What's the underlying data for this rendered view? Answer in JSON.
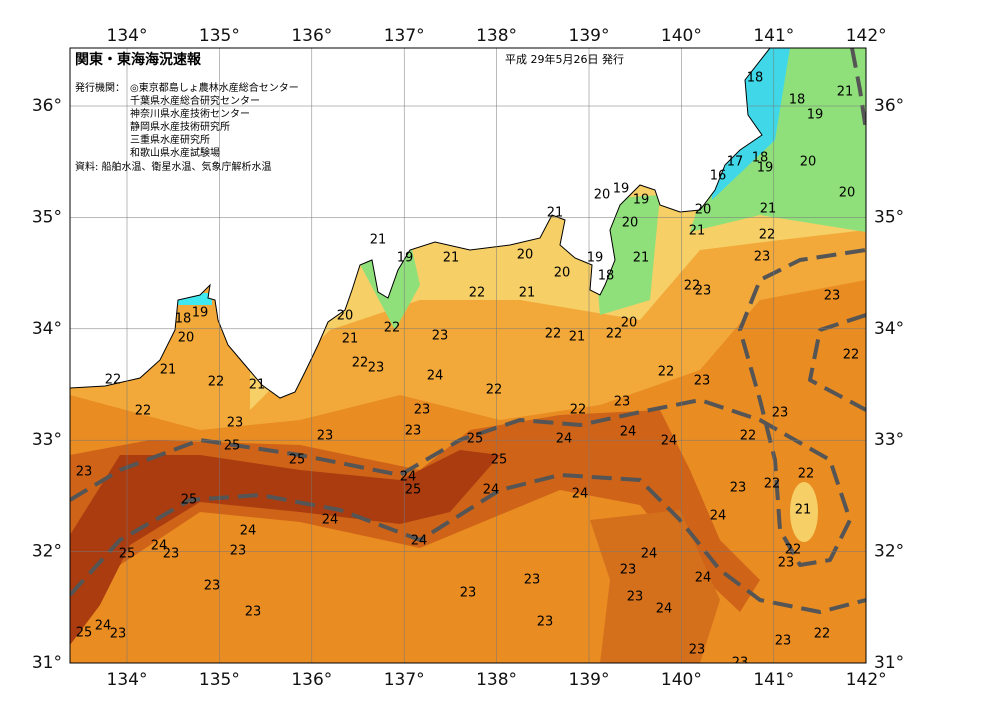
{
  "header": {
    "title": "関東・東海海況速報",
    "issue_date": "平成 29年5月26日 発行",
    "issuer_label": "発行機関：",
    "issuers": [
      "◎東京都島しょ農林水産総合センター",
      "千葉県水産総合研究センター",
      "神奈川県水産技術センター",
      "静岡県水産技術研究所",
      "三重県水産研究所",
      "和歌山県水産試験場"
    ],
    "source": "資料: 船舶水温、衛星水温、気象庁解析水温"
  },
  "map": {
    "lon_ticks": [
      {
        "value": 134,
        "label": "134°"
      },
      {
        "value": 135,
        "label": "135°"
      },
      {
        "value": 136,
        "label": "136°"
      },
      {
        "value": 137,
        "label": "137°"
      },
      {
        "value": 138,
        "label": "138°"
      },
      {
        "value": 139,
        "label": "139°"
      },
      {
        "value": 140,
        "label": "140°"
      },
      {
        "value": 141,
        "label": "141°"
      },
      {
        "value": 142,
        "label": "142°"
      }
    ],
    "lat_ticks": [
      {
        "value": 36,
        "label": "36°"
      },
      {
        "value": 35,
        "label": "35°"
      },
      {
        "value": 34,
        "label": "34°"
      },
      {
        "value": 33,
        "label": "33°"
      },
      {
        "value": 32,
        "label": "32°"
      },
      {
        "value": 31,
        "label": "31°"
      }
    ],
    "temperature_labels": [
      18,
      18,
      21,
      19,
      17,
      18,
      19,
      16,
      20,
      20,
      20,
      21,
      21,
      22,
      23,
      20,
      19,
      19,
      21,
      20,
      21,
      19,
      21,
      20,
      19,
      21,
      18,
      20,
      22,
      21,
      22,
      23,
      23,
      20,
      22,
      21,
      23,
      22,
      21,
      22,
      20,
      22,
      22,
      23,
      18,
      19,
      20,
      21,
      22,
      22,
      21,
      24,
      22,
      22,
      23,
      22,
      23,
      22,
      23,
      23,
      23,
      23,
      23,
      25,
      24,
      24,
      24,
      22,
      25,
      25,
      25,
      23,
      24,
      25,
      24,
      24,
      23,
      22,
      22,
      21,
      25,
      24,
      24,
      24,
      24,
      24,
      23,
      23,
      25,
      24,
      22,
      23,
      23,
      24,
      23,
      23,
      23,
      23,
      24,
      23,
      23,
      22,
      23,
      25,
      24,
      23,
      23,
      23
    ]
  }
}
